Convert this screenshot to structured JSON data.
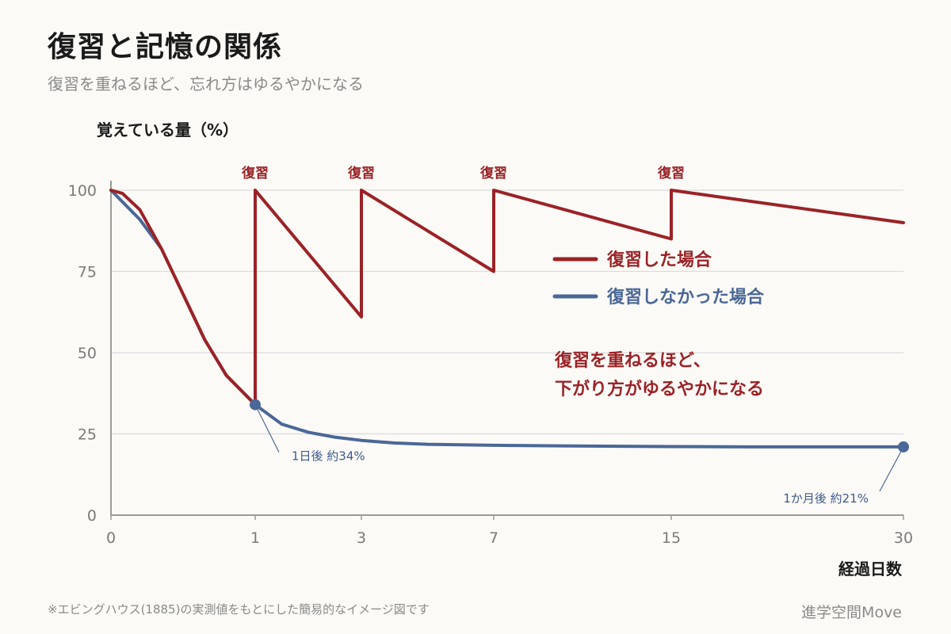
{
  "title": "復習と記憶の関係",
  "subtitle": "復習を重ねるほど、忘れ方はゆるやかになる",
  "footnote": "※エビングハウス(1885)の実測値をもとにした簡易的なイメージ図です",
  "brand": "進学空間Move",
  "colors": {
    "review": "#9b2226",
    "no_review": "#4a6797",
    "grid": "#dcdcdc",
    "axis": "#9a9a9a"
  },
  "chart_data": {
    "type": "line",
    "ylabel": "覚えている量（%）",
    "xlabel": "経過日数",
    "ylim": [
      0,
      100
    ],
    "y_ticks": [
      0,
      25,
      50,
      75,
      100
    ],
    "x_ticks": [
      "0",
      "1",
      "3",
      "7",
      "15",
      "30"
    ],
    "x_tick_values": [
      0,
      1,
      3,
      7,
      15,
      30
    ],
    "x_axis_scale": "non-linear (ticks shown at marked days)",
    "grid": "horizontal",
    "legend_placement": "center-right",
    "series": [
      {
        "name": "復習した場合",
        "points": [
          [
            0,
            100
          ],
          [
            0.08,
            99
          ],
          [
            0.2,
            94
          ],
          [
            0.35,
            82
          ],
          [
            0.5,
            68
          ],
          [
            0.65,
            54
          ],
          [
            0.8,
            43
          ],
          [
            1,
            34
          ],
          [
            1,
            100
          ],
          [
            3,
            61
          ],
          [
            3,
            100
          ],
          [
            7,
            75
          ],
          [
            7,
            100
          ],
          [
            15,
            85
          ],
          [
            15,
            100
          ],
          [
            30,
            90
          ]
        ]
      },
      {
        "name": "復習しなかった場合",
        "points": [
          [
            0,
            100
          ],
          [
            0.2,
            91
          ],
          [
            0.35,
            82
          ],
          [
            0.5,
            68
          ],
          [
            0.65,
            54
          ],
          [
            0.8,
            43
          ],
          [
            1,
            34
          ],
          [
            1.5,
            28
          ],
          [
            2,
            25.5
          ],
          [
            2.5,
            24
          ],
          [
            3,
            23
          ],
          [
            4,
            22.2
          ],
          [
            5,
            21.8
          ],
          [
            7,
            21.5
          ],
          [
            10,
            21.3
          ],
          [
            15,
            21.1
          ],
          [
            20,
            21
          ],
          [
            30,
            21
          ]
        ]
      }
    ],
    "review_markers": [
      {
        "day": 1,
        "label": "復習"
      },
      {
        "day": 3,
        "label": "復習"
      },
      {
        "day": 7,
        "label": "復習"
      },
      {
        "day": 15,
        "label": "復習"
      }
    ],
    "annotations": [
      {
        "day": 1,
        "value": 34,
        "label": "1日後 約34%"
      },
      {
        "day": 30,
        "value": 21,
        "label": "1か月後 約21%"
      }
    ],
    "callout_lines": [
      "復習を重ねるほど、",
      "下がり方がゆるやかになる"
    ]
  }
}
